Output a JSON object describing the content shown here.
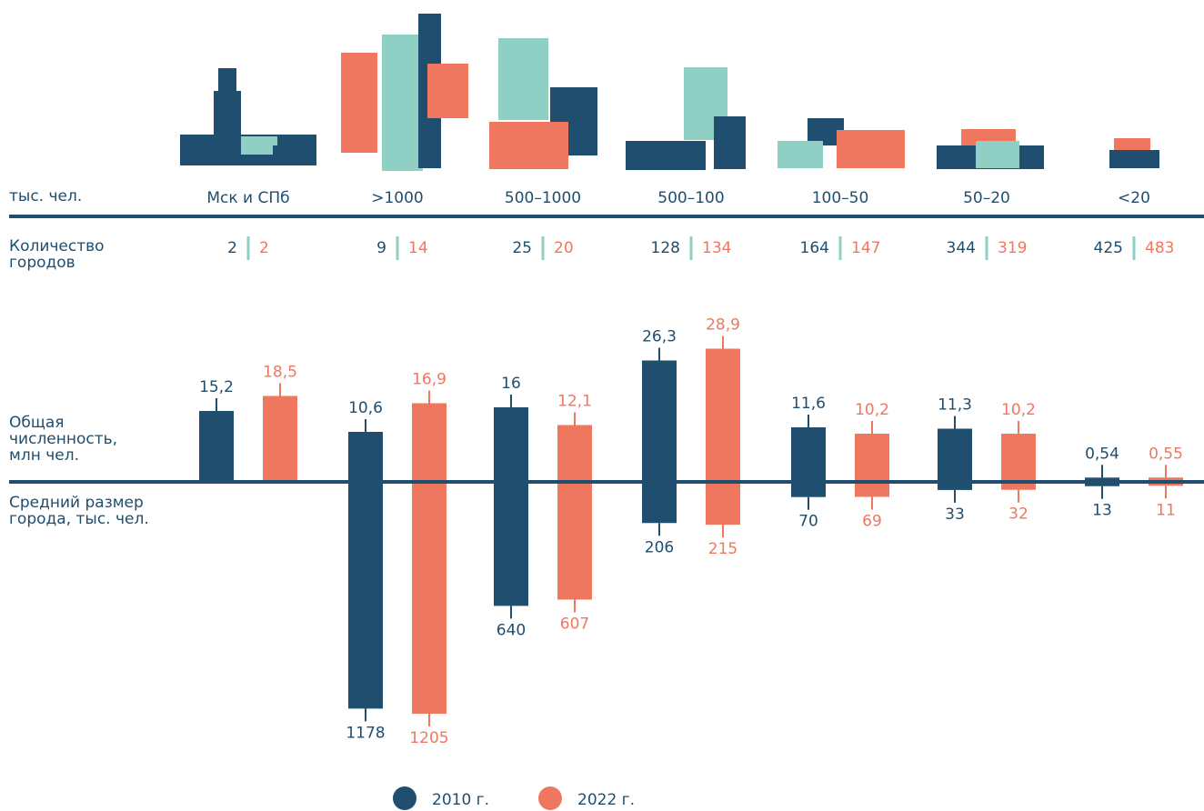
{
  "chart_data": {
    "type": "bar",
    "axis_label": "тыс. чел.",
    "categories": [
      "Мск и СПб",
      ">1000",
      "500–1000",
      "500–100",
      "100–50",
      "50–20",
      "<20"
    ],
    "row_labels": {
      "count": "Количество городов",
      "population": "Общая численность, млн чел.",
      "avg_size": "Средний размер города, тыс. чел."
    },
    "series": [
      {
        "name": "2010 г.",
        "color": "#1f4e6e",
        "count": [
          2,
          9,
          25,
          128,
          164,
          344,
          425
        ],
        "values": [
          15.2,
          10.6,
          16,
          26.3,
          11.6,
          11.3,
          0.54
        ],
        "value_labels": [
          "15,2",
          "10,6",
          "16",
          "26,3",
          "11,6",
          "11,3",
          "0,54"
        ],
        "avg_size": [
          null,
          1178,
          640,
          206,
          70,
          33,
          13
        ]
      },
      {
        "name": "2022 г.",
        "color": "#ef7760",
        "count": [
          2,
          14,
          20,
          134,
          147,
          319,
          483
        ],
        "values": [
          18.5,
          16.9,
          12.1,
          28.9,
          10.2,
          10.2,
          0.55
        ],
        "value_labels": [
          "18,5",
          "16,9",
          "12,1",
          "28,9",
          "10,2",
          "10,2",
          "0,55"
        ],
        "avg_size": [
          null,
          1205,
          607,
          215,
          69,
          32,
          11
        ]
      }
    ],
    "ylim": [
      0,
      30
    ],
    "y2lim": [
      0,
      1200
    ]
  }
}
